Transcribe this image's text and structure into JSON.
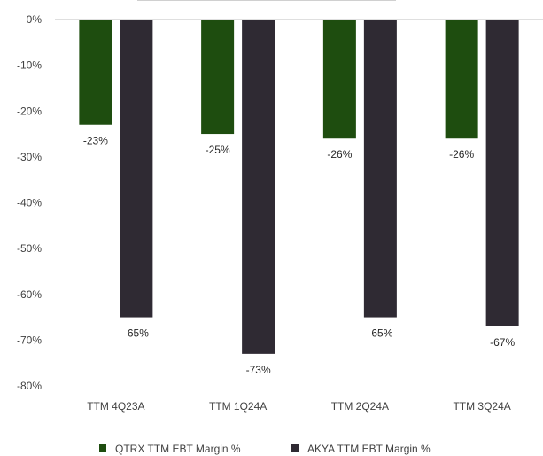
{
  "chart_data": {
    "type": "bar",
    "categories": [
      "TTM 4Q23A",
      "TTM 1Q24A",
      "TTM 2Q24A",
      "TTM 3Q24A"
    ],
    "series": [
      {
        "name": "QTRX TTM EBT Margin %",
        "values": [
          -23,
          -25,
          -26,
          -26
        ],
        "labels": [
          "-23%",
          "-25%",
          "-26%",
          "-26%"
        ],
        "color": "#1e4d0f"
      },
      {
        "name": "AKYA TTM EBT Margin %",
        "values": [
          -65,
          -73,
          -65,
          -67
        ],
        "labels": [
          "-65%",
          "-73%",
          "-65%",
          "-67%"
        ],
        "color": "#2f2a33"
      }
    ],
    "y_ticks": [
      "0%",
      "-10%",
      "-20%",
      "-30%",
      "-40%",
      "-50%",
      "-60%",
      "-70%",
      "-80%"
    ],
    "ylim": [
      -80,
      0
    ],
    "grid": false,
    "legend_position": "bottom"
  }
}
